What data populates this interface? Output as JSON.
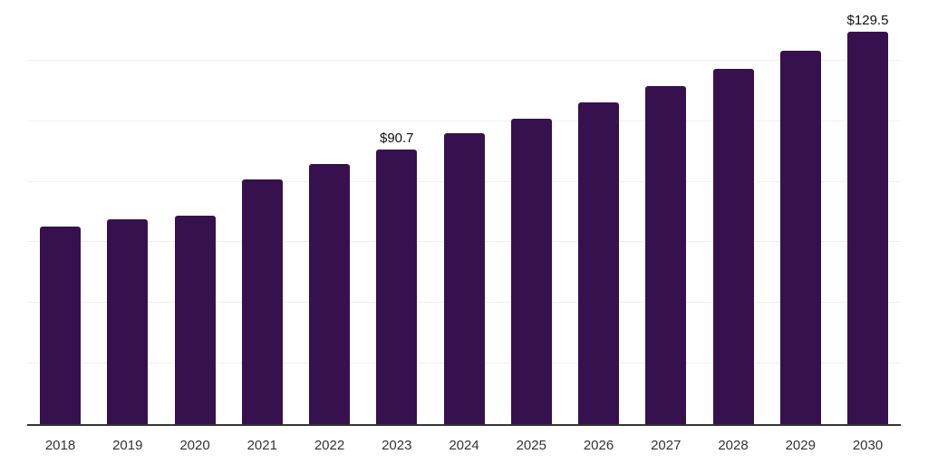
{
  "chart_data": {
    "type": "bar",
    "title": "",
    "xlabel": "",
    "ylabel": "",
    "categories": [
      "2018",
      "2019",
      "2020",
      "2021",
      "2022",
      "2023",
      "2024",
      "2025",
      "2026",
      "2027",
      "2028",
      "2029",
      "2030"
    ],
    "values": [
      65.2,
      67.6,
      68.8,
      80.7,
      86.0,
      90.7,
      95.9,
      100.9,
      106.3,
      111.6,
      117.3,
      123.2,
      129.5
    ],
    "data_labels": [
      {
        "category": "2023",
        "text": "$90.7"
      },
      {
        "category": "2030",
        "text": "$129.5"
      }
    ],
    "ylim": [
      0,
      140
    ],
    "grid": true,
    "grid_step": 20,
    "legend": "none"
  },
  "colors": {
    "bar": "#36114e",
    "axis": "#333333",
    "gridline": "#f0f0f0",
    "tick_label": "#333333",
    "data_label": "#111111",
    "background": "#ffffff"
  }
}
